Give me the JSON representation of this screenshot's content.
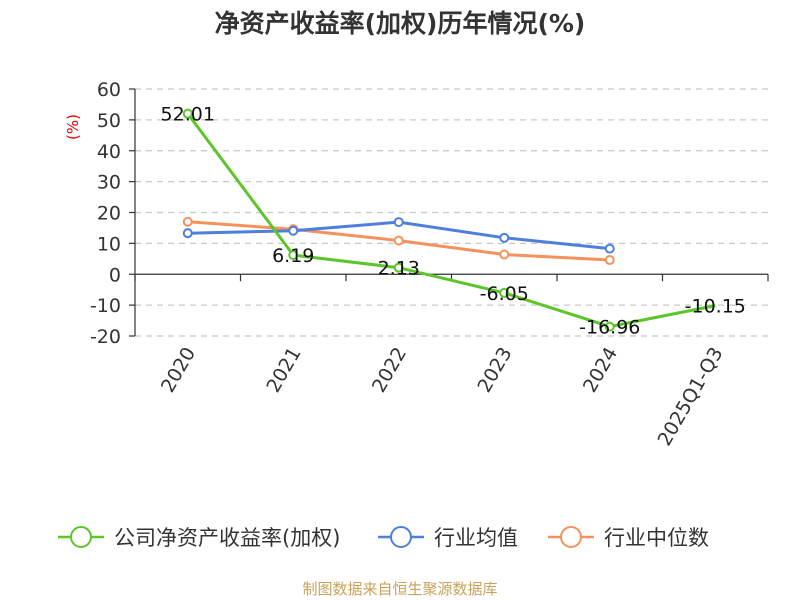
{
  "chart_data": {
    "type": "line",
    "title": "净资产收益率(加权)历年情况(%)",
    "ylabel": "(%)",
    "xlabel": "",
    "categories": [
      "2020",
      "2021",
      "2022",
      "2023",
      "2024",
      "2025Q1-Q3"
    ],
    "ylim": [
      -20,
      60
    ],
    "yticks": [
      60,
      50,
      40,
      30,
      20,
      10,
      0,
      -10,
      -20
    ],
    "grid": true,
    "legend_position": "bottom",
    "series": [
      {
        "name": "公司净资产收益率(加权)",
        "color": "#5cc529",
        "values": [
          52.01,
          6.19,
          2.13,
          -6.05,
          -16.96,
          -10.15
        ],
        "labels": [
          "52.01",
          "6.19",
          "2.13",
          "-6.05",
          "-16.96",
          "-10.15"
        ],
        "markers": [
          true,
          true,
          true,
          true,
          true,
          false
        ]
      },
      {
        "name": "行业均值",
        "color": "#4d7fde",
        "values": [
          13.3,
          14.1,
          16.9,
          11.8,
          8.3,
          null
        ]
      },
      {
        "name": "行业中位数",
        "color": "#f5925b",
        "values": [
          17.0,
          14.6,
          10.9,
          6.4,
          4.6,
          null
        ]
      }
    ],
    "source": "制图数据来自恒生聚源数据库"
  }
}
